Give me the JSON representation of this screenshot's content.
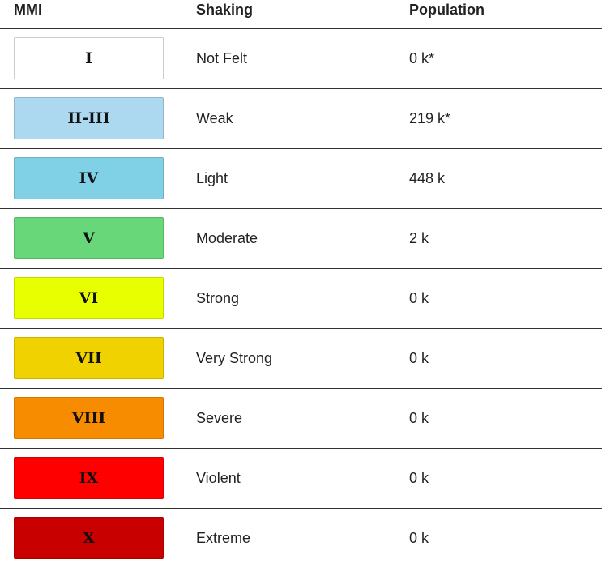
{
  "table": {
    "header": [
      "MMI",
      "Shaking",
      "Population"
    ],
    "rows": [
      {
        "mmi": "I",
        "color": "#ffffff",
        "shaking": "Not Felt",
        "population": "0 k*"
      },
      {
        "mmi": "II-III",
        "color": "#acd8f0",
        "shaking": "Weak",
        "population": "219 k*"
      },
      {
        "mmi": "IV",
        "color": "#80d0e6",
        "shaking": "Light",
        "population": "448 k"
      },
      {
        "mmi": "V",
        "color": "#68d77a",
        "shaking": "Moderate",
        "population": "2 k"
      },
      {
        "mmi": "VI",
        "color": "#e8ff00",
        "shaking": "Strong",
        "population": "0 k"
      },
      {
        "mmi": "VII",
        "color": "#f0d200",
        "shaking": "Very Strong",
        "population": "0 k"
      },
      {
        "mmi": "VIII",
        "color": "#f78c00",
        "shaking": "Severe",
        "population": "0 k"
      },
      {
        "mmi": "IX",
        "color": "#ff0000",
        "shaking": "Violent",
        "population": "0 k"
      },
      {
        "mmi": "X",
        "color": "#c80000",
        "shaking": "Extreme",
        "population": "0 k"
      }
    ]
  }
}
